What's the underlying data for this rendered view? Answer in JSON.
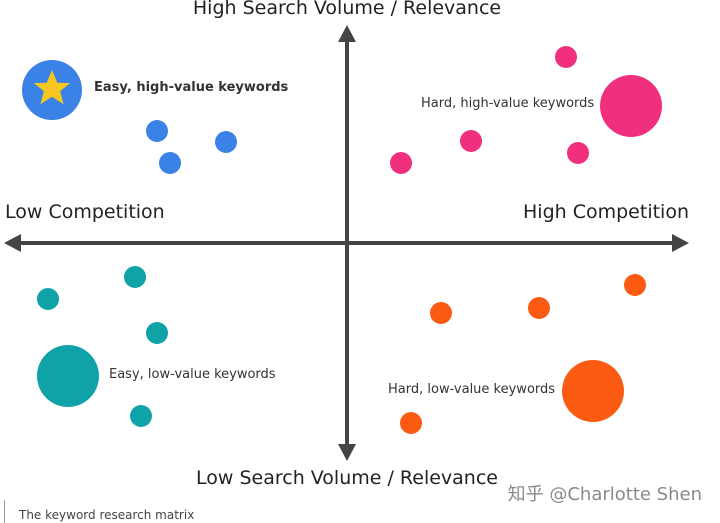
{
  "axes": {
    "top": "High Search Volume / Relevance",
    "bottom": "Low Search Volume / Relevance",
    "left": "Low Competition",
    "right": "High Competition"
  },
  "quadrants": {
    "easy_high": "Easy, high-value keywords",
    "hard_high": "Hard, high-value keywords",
    "easy_low": "Easy, low-value keywords",
    "hard_low": "Hard, low-value keywords"
  },
  "colors": {
    "easy_high": "#3b82e6",
    "hard_high": "#f0307f",
    "easy_low": "#0fa3a8",
    "hard_low": "#fb5a12",
    "star": "#f7c61f",
    "axis": "#444444"
  },
  "icons": {
    "star_badge": "star-icon"
  },
  "caption": "The keyword research matrix",
  "watermark": "知乎 @Charlotte Shen"
}
